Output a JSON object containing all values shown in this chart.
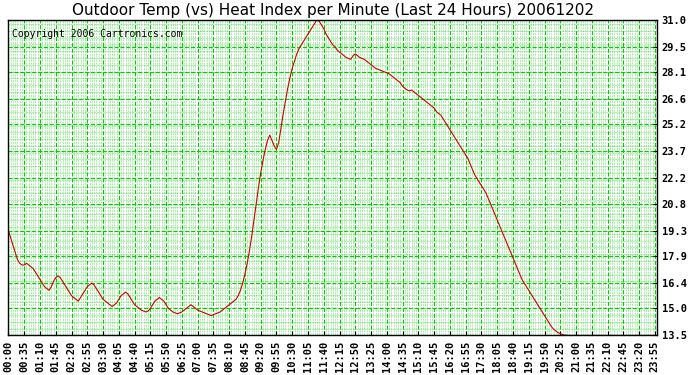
{
  "title": "Outdoor Temp (vs) Heat Index per Minute (Last 24 Hours) 20061202",
  "copyright": "Copyright 2006 Cartronics.com",
  "bg_color": "#ffffff",
  "plot_bg_color": "#ffffff",
  "grid_color": "#00cc00",
  "line_color": "#cc0000",
  "yticks": [
    13.5,
    15.0,
    16.4,
    17.9,
    19.3,
    20.8,
    22.2,
    23.7,
    25.2,
    26.6,
    28.1,
    29.5,
    31.0
  ],
  "ymin": 13.5,
  "ymax": 31.0,
  "xmin": 0,
  "xmax": 1439,
  "title_fontsize": 11,
  "copyright_fontsize": 7,
  "tick_fontsize": 7.5,
  "curve_points": [
    [
      0,
      19.3
    ],
    [
      5,
      18.9
    ],
    [
      10,
      18.5
    ],
    [
      15,
      18.1
    ],
    [
      20,
      17.7
    ],
    [
      25,
      17.5
    ],
    [
      30,
      17.4
    ],
    [
      35,
      17.4
    ],
    [
      40,
      17.5
    ],
    [
      45,
      17.4
    ],
    [
      50,
      17.3
    ],
    [
      55,
      17.2
    ],
    [
      60,
      17.0
    ],
    [
      65,
      16.8
    ],
    [
      70,
      16.6
    ],
    [
      75,
      16.4
    ],
    [
      80,
      16.2
    ],
    [
      85,
      16.1
    ],
    [
      90,
      16.0
    ],
    [
      95,
      16.2
    ],
    [
      100,
      16.5
    ],
    [
      105,
      16.7
    ],
    [
      110,
      16.8
    ],
    [
      115,
      16.7
    ],
    [
      120,
      16.5
    ],
    [
      125,
      16.3
    ],
    [
      130,
      16.1
    ],
    [
      135,
      15.9
    ],
    [
      140,
      15.7
    ],
    [
      145,
      15.6
    ],
    [
      150,
      15.5
    ],
    [
      155,
      15.4
    ],
    [
      160,
      15.6
    ],
    [
      165,
      15.8
    ],
    [
      170,
      16.0
    ],
    [
      175,
      16.2
    ],
    [
      180,
      16.3
    ],
    [
      185,
      16.4
    ],
    [
      190,
      16.3
    ],
    [
      195,
      16.1
    ],
    [
      200,
      15.9
    ],
    [
      205,
      15.7
    ],
    [
      210,
      15.5
    ],
    [
      215,
      15.4
    ],
    [
      220,
      15.3
    ],
    [
      225,
      15.2
    ],
    [
      230,
      15.1
    ],
    [
      235,
      15.2
    ],
    [
      240,
      15.3
    ],
    [
      245,
      15.5
    ],
    [
      250,
      15.7
    ],
    [
      255,
      15.8
    ],
    [
      260,
      15.9
    ],
    [
      265,
      15.8
    ],
    [
      270,
      15.6
    ],
    [
      275,
      15.4
    ],
    [
      280,
      15.2
    ],
    [
      285,
      15.1
    ],
    [
      290,
      15.0
    ],
    [
      295,
      14.9
    ],
    [
      300,
      14.85
    ],
    [
      305,
      14.8
    ],
    [
      310,
      14.85
    ],
    [
      315,
      15.0
    ],
    [
      320,
      15.2
    ],
    [
      325,
      15.4
    ],
    [
      330,
      15.5
    ],
    [
      335,
      15.6
    ],
    [
      340,
      15.5
    ],
    [
      345,
      15.4
    ],
    [
      350,
      15.2
    ],
    [
      355,
      15.0
    ],
    [
      360,
      14.9
    ],
    [
      365,
      14.8
    ],
    [
      370,
      14.75
    ],
    [
      375,
      14.7
    ],
    [
      380,
      14.75
    ],
    [
      385,
      14.8
    ],
    [
      390,
      14.9
    ],
    [
      395,
      15.0
    ],
    [
      400,
      15.1
    ],
    [
      405,
      15.2
    ],
    [
      410,
      15.1
    ],
    [
      415,
      15.0
    ],
    [
      420,
      14.9
    ],
    [
      425,
      14.85
    ],
    [
      430,
      14.8
    ],
    [
      435,
      14.75
    ],
    [
      440,
      14.7
    ],
    [
      445,
      14.65
    ],
    [
      450,
      14.6
    ],
    [
      455,
      14.65
    ],
    [
      460,
      14.7
    ],
    [
      465,
      14.75
    ],
    [
      470,
      14.8
    ],
    [
      475,
      14.9
    ],
    [
      480,
      15.0
    ],
    [
      485,
      15.1
    ],
    [
      490,
      15.2
    ],
    [
      495,
      15.3
    ],
    [
      500,
      15.4
    ],
    [
      505,
      15.5
    ],
    [
      510,
      15.7
    ],
    [
      515,
      16.0
    ],
    [
      520,
      16.4
    ],
    [
      525,
      16.9
    ],
    [
      530,
      17.5
    ],
    [
      535,
      18.2
    ],
    [
      540,
      19.0
    ],
    [
      545,
      19.9
    ],
    [
      550,
      20.8
    ],
    [
      555,
      21.7
    ],
    [
      560,
      22.5
    ],
    [
      565,
      23.2
    ],
    [
      570,
      23.8
    ],
    [
      575,
      24.3
    ],
    [
      580,
      24.6
    ],
    [
      585,
      24.3
    ],
    [
      590,
      24.0
    ],
    [
      595,
      23.8
    ],
    [
      600,
      24.2
    ],
    [
      605,
      25.0
    ],
    [
      610,
      25.8
    ],
    [
      615,
      26.5
    ],
    [
      620,
      27.2
    ],
    [
      625,
      27.8
    ],
    [
      630,
      28.3
    ],
    [
      635,
      28.7
    ],
    [
      640,
      29.1
    ],
    [
      645,
      29.4
    ],
    [
      650,
      29.6
    ],
    [
      655,
      29.8
    ],
    [
      660,
      30.0
    ],
    [
      665,
      30.2
    ],
    [
      670,
      30.4
    ],
    [
      675,
      30.6
    ],
    [
      680,
      30.8
    ],
    [
      685,
      31.0
    ],
    [
      690,
      30.9
    ],
    [
      695,
      30.7
    ],
    [
      700,
      30.5
    ],
    [
      705,
      30.2
    ],
    [
      710,
      30.0
    ],
    [
      715,
      29.8
    ],
    [
      720,
      29.6
    ],
    [
      725,
      29.5
    ],
    [
      730,
      29.3
    ],
    [
      735,
      29.2
    ],
    [
      740,
      29.1
    ],
    [
      745,
      29.0
    ],
    [
      750,
      28.9
    ],
    [
      755,
      28.85
    ],
    [
      760,
      28.8
    ],
    [
      765,
      29.0
    ],
    [
      770,
      29.1
    ],
    [
      775,
      29.0
    ],
    [
      780,
      28.9
    ],
    [
      785,
      28.85
    ],
    [
      790,
      28.8
    ],
    [
      795,
      28.7
    ],
    [
      800,
      28.6
    ],
    [
      805,
      28.5
    ],
    [
      810,
      28.4
    ],
    [
      815,
      28.3
    ],
    [
      820,
      28.25
    ],
    [
      825,
      28.2
    ],
    [
      830,
      28.15
    ],
    [
      835,
      28.1
    ],
    [
      840,
      28.05
    ],
    [
      845,
      28.0
    ],
    [
      850,
      27.9
    ],
    [
      855,
      27.8
    ],
    [
      860,
      27.7
    ],
    [
      865,
      27.6
    ],
    [
      870,
      27.5
    ],
    [
      875,
      27.3
    ],
    [
      880,
      27.2
    ],
    [
      885,
      27.1
    ],
    [
      890,
      27.05
    ],
    [
      895,
      27.1
    ],
    [
      900,
      27.0
    ],
    [
      905,
      26.9
    ],
    [
      910,
      26.8
    ],
    [
      915,
      26.7
    ],
    [
      920,
      26.6
    ],
    [
      925,
      26.5
    ],
    [
      930,
      26.4
    ],
    [
      935,
      26.3
    ],
    [
      940,
      26.2
    ],
    [
      945,
      26.1
    ],
    [
      950,
      25.9
    ],
    [
      955,
      25.8
    ],
    [
      960,
      25.7
    ],
    [
      965,
      25.5
    ],
    [
      970,
      25.3
    ],
    [
      975,
      25.1
    ],
    [
      980,
      24.9
    ],
    [
      985,
      24.7
    ],
    [
      990,
      24.5
    ],
    [
      995,
      24.3
    ],
    [
      1000,
      24.1
    ],
    [
      1005,
      23.9
    ],
    [
      1010,
      23.7
    ],
    [
      1015,
      23.5
    ],
    [
      1020,
      23.3
    ],
    [
      1025,
      23.0
    ],
    [
      1030,
      22.7
    ],
    [
      1035,
      22.4
    ],
    [
      1040,
      22.2
    ],
    [
      1045,
      22.0
    ],
    [
      1050,
      21.8
    ],
    [
      1055,
      21.6
    ],
    [
      1060,
      21.4
    ],
    [
      1065,
      21.1
    ],
    [
      1070,
      20.8
    ],
    [
      1075,
      20.5
    ],
    [
      1080,
      20.2
    ],
    [
      1085,
      19.9
    ],
    [
      1090,
      19.6
    ],
    [
      1095,
      19.3
    ],
    [
      1100,
      19.0
    ],
    [
      1105,
      18.7
    ],
    [
      1110,
      18.4
    ],
    [
      1115,
      18.1
    ],
    [
      1120,
      17.8
    ],
    [
      1125,
      17.5
    ],
    [
      1130,
      17.2
    ],
    [
      1135,
      16.9
    ],
    [
      1140,
      16.6
    ],
    [
      1145,
      16.4
    ],
    [
      1150,
      16.2
    ],
    [
      1155,
      16.0
    ],
    [
      1160,
      15.8
    ],
    [
      1165,
      15.6
    ],
    [
      1170,
      15.4
    ],
    [
      1175,
      15.2
    ],
    [
      1180,
      15.0
    ],
    [
      1185,
      14.8
    ],
    [
      1190,
      14.6
    ],
    [
      1195,
      14.4
    ],
    [
      1200,
      14.2
    ],
    [
      1205,
      14.0
    ],
    [
      1210,
      13.85
    ],
    [
      1215,
      13.75
    ],
    [
      1220,
      13.65
    ],
    [
      1225,
      13.6
    ],
    [
      1230,
      13.55
    ],
    [
      1235,
      13.52
    ],
    [
      1240,
      13.5
    ],
    [
      1250,
      13.5
    ],
    [
      1260,
      13.5
    ],
    [
      1270,
      13.5
    ],
    [
      1280,
      13.5
    ],
    [
      1290,
      13.5
    ],
    [
      1300,
      13.5
    ],
    [
      1310,
      13.5
    ],
    [
      1320,
      13.5
    ],
    [
      1330,
      13.5
    ],
    [
      1340,
      13.5
    ],
    [
      1350,
      13.5
    ],
    [
      1360,
      13.5
    ],
    [
      1370,
      13.5
    ],
    [
      1380,
      13.5
    ],
    [
      1390,
      13.5
    ],
    [
      1400,
      13.5
    ],
    [
      1410,
      13.5
    ],
    [
      1420,
      13.5
    ],
    [
      1430,
      13.5
    ],
    [
      1439,
      13.5
    ]
  ]
}
